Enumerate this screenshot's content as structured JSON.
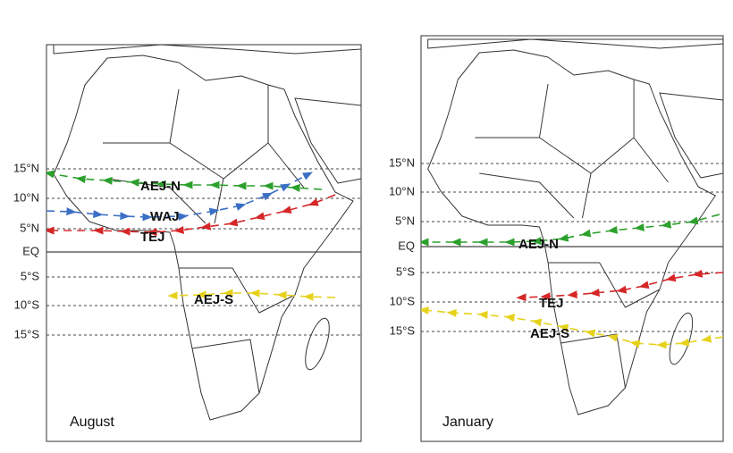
{
  "panels": [
    {
      "month": "August",
      "latitudes": [
        "15°N",
        "10°N",
        "5°N",
        "EQ",
        "5°S",
        "10°S",
        "15°S"
      ],
      "jets": [
        "AEJ-N",
        "WAJ",
        "TEJ",
        "AEJ-S"
      ]
    },
    {
      "month": "January",
      "latitudes": [
        "15°N",
        "10°N",
        "5°N",
        "EQ",
        "5°S",
        "10°S",
        "15°S"
      ],
      "jets": [
        "AEJ-N",
        "TEJ",
        "AEJ-S"
      ]
    }
  ]
}
